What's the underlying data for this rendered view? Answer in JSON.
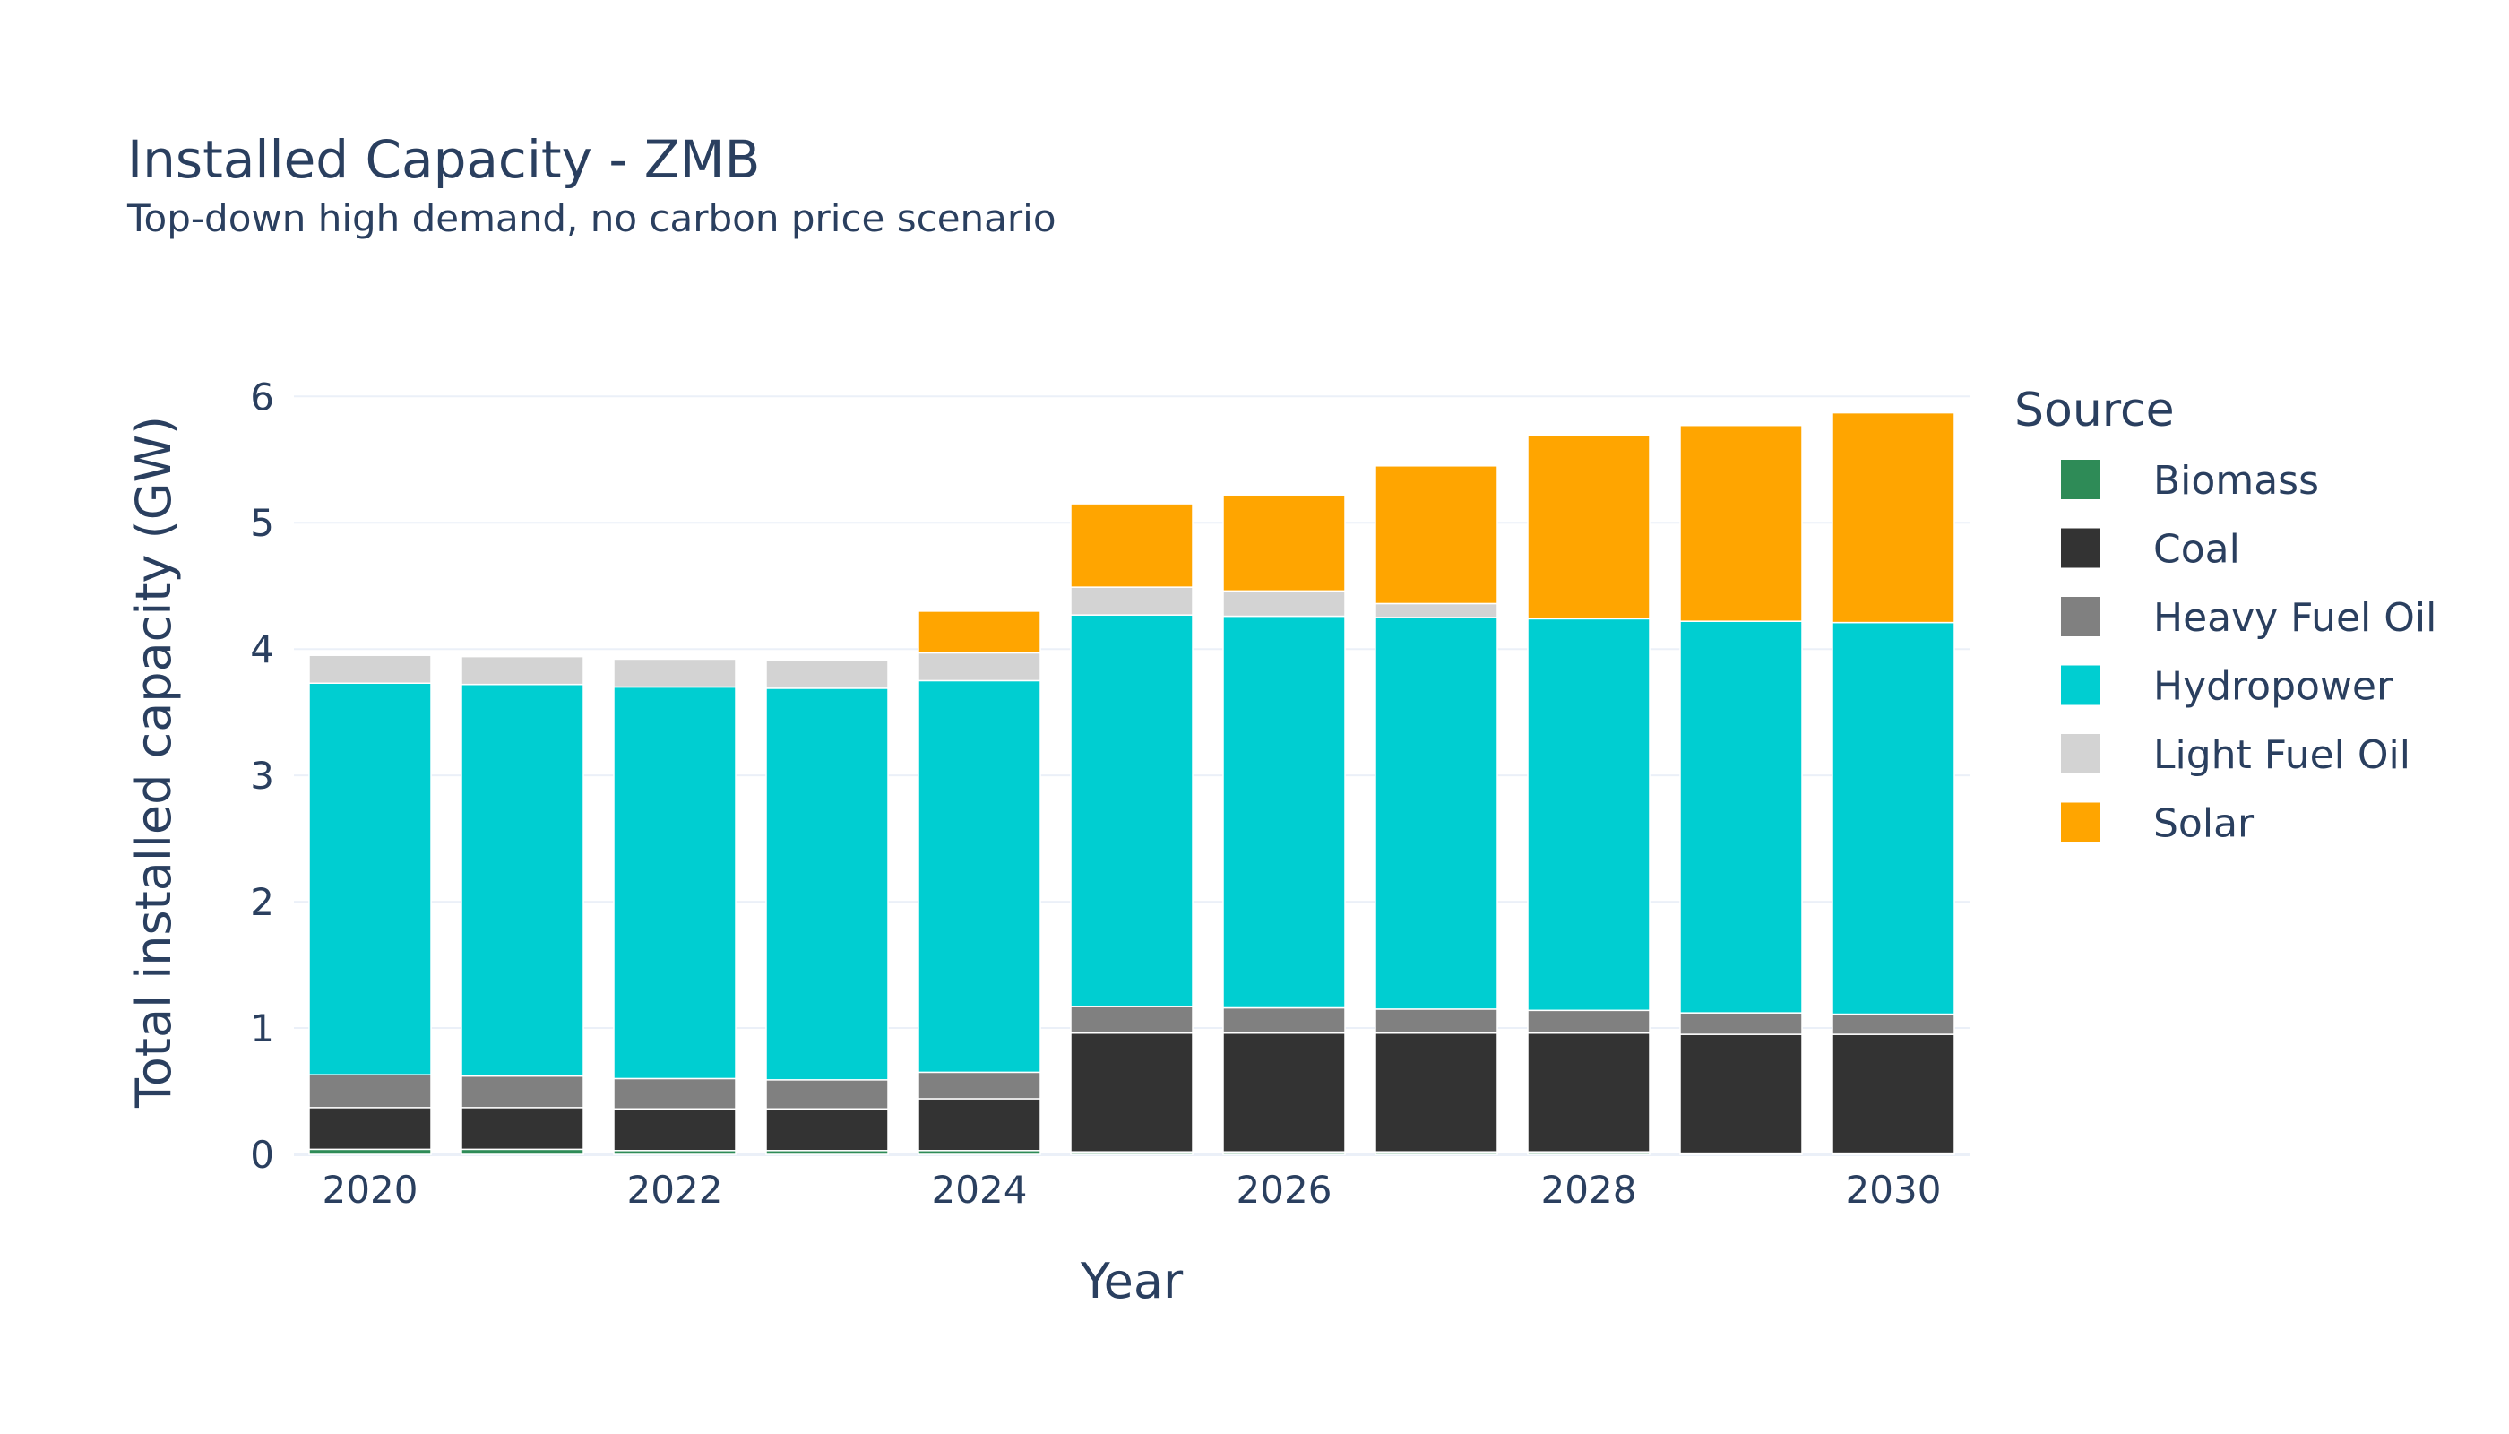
{
  "chart_data": {
    "type": "bar",
    "stacked": true,
    "title": "Installed Capacity - ZMB",
    "subtitle": "Top-down high demand, no carbon price scenario",
    "xlabel": "Year",
    "ylabel": "Total installed capacity (GW)",
    "ylim": [
      0,
      6.3
    ],
    "yticks": [
      0,
      1,
      2,
      3,
      4,
      5,
      6
    ],
    "xticks": [
      2020,
      2022,
      2024,
      2026,
      2028,
      2030
    ],
    "grid": true,
    "legend_title": "Source",
    "legend_position": "right",
    "categories": [
      2020,
      2021,
      2022,
      2023,
      2024,
      2025,
      2026,
      2027,
      2028,
      2029,
      2030
    ],
    "series": [
      {
        "name": "Biomass",
        "color": "#2e8b57",
        "values": [
          0.04,
          0.04,
          0.03,
          0.03,
          0.03,
          0.02,
          0.02,
          0.02,
          0.02,
          0.01,
          0.01
        ]
      },
      {
        "name": "Coal",
        "color": "#333333",
        "values": [
          0.33,
          0.33,
          0.33,
          0.33,
          0.41,
          0.94,
          0.94,
          0.94,
          0.94,
          0.94,
          0.94
        ]
      },
      {
        "name": "Heavy Fuel Oil",
        "color": "#808080",
        "values": [
          0.26,
          0.25,
          0.24,
          0.23,
          0.21,
          0.21,
          0.2,
          0.19,
          0.18,
          0.17,
          0.16
        ]
      },
      {
        "name": "Hydropower",
        "color": "#00ced1",
        "values": [
          3.1,
          3.1,
          3.1,
          3.1,
          3.1,
          3.1,
          3.1,
          3.1,
          3.1,
          3.1,
          3.1
        ]
      },
      {
        "name": "Light Fuel Oil",
        "color": "#d3d3d3",
        "values": [
          0.22,
          0.22,
          0.22,
          0.22,
          0.22,
          0.22,
          0.2,
          0.11,
          0.0,
          0.0,
          0.0
        ]
      },
      {
        "name": "Solar",
        "color": "#ffa500",
        "values": [
          0.0,
          0.0,
          0.0,
          0.0,
          0.33,
          0.66,
          0.76,
          1.09,
          1.45,
          1.55,
          1.66
        ]
      }
    ]
  }
}
